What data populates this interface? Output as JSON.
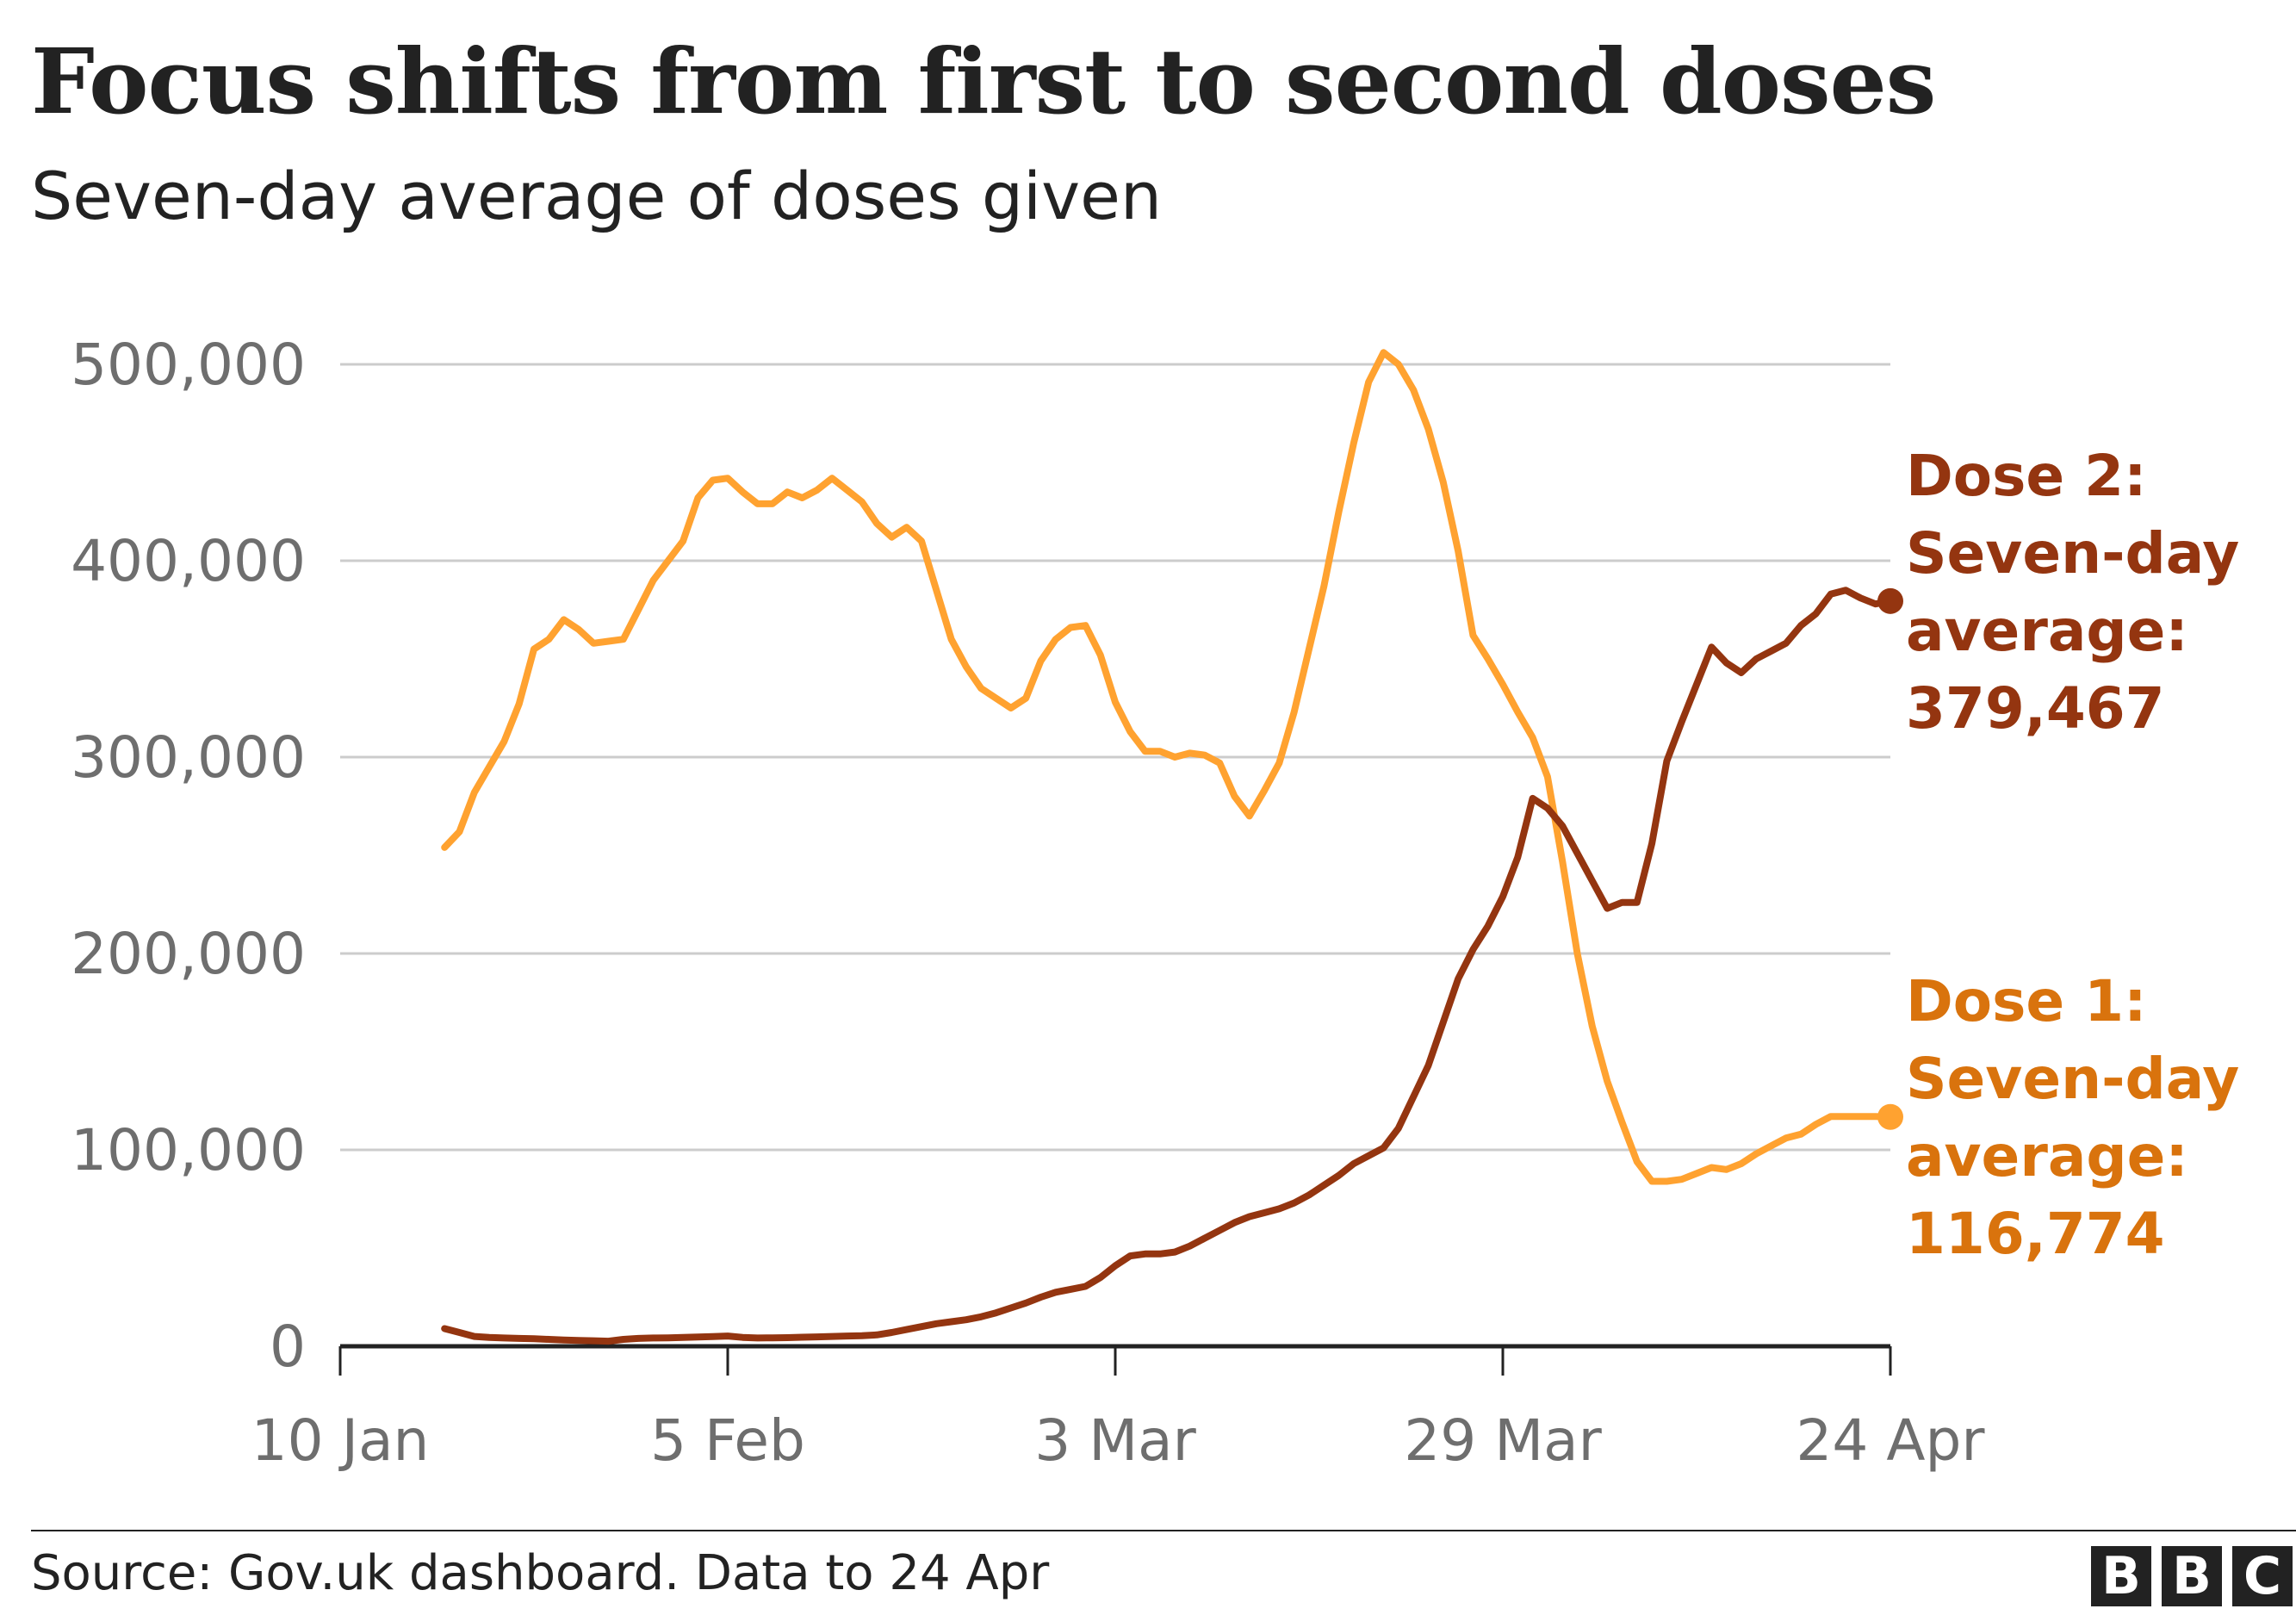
{
  "title": "Focus shifts from first to second doses",
  "subtitle": "Seven-day average of doses given",
  "source": "Source: Gov.uk dashboard. Data to 24 Apr",
  "logo": [
    "B",
    "B",
    "C"
  ],
  "colors": {
    "dose1_line": "#ffa230",
    "dose1_label": "#d9730d",
    "dose2_line": "#943510",
    "dose2_label": "#943510",
    "grid": "#cccccc",
    "axis": "#222222",
    "tick_text": "#6e6e6e",
    "text": "#222222"
  },
  "chart_data": {
    "type": "line",
    "ylim": [
      0,
      500000
    ],
    "y_ticks": [
      0,
      100000,
      200000,
      300000,
      400000,
      500000
    ],
    "y_tick_labels": [
      "0",
      "100,000",
      "200,000",
      "300,000",
      "400,000",
      "500,000"
    ],
    "xlim": [
      "2021-01-10",
      "2021-04-24"
    ],
    "x_ticks": [
      "2021-01-10",
      "2021-02-05",
      "2021-03-03",
      "2021-03-29",
      "2021-04-24"
    ],
    "x_tick_labels": [
      "10 Jan",
      "5 Feb",
      "3 Mar",
      "29 Mar",
      "24 Apr"
    ],
    "grid": "horizontal",
    "x": [
      "2021-01-17",
      "2021-01-18",
      "2021-01-19",
      "2021-01-20",
      "2021-01-21",
      "2021-01-22",
      "2021-01-23",
      "2021-01-24",
      "2021-01-25",
      "2021-01-26",
      "2021-01-27",
      "2021-01-28",
      "2021-01-29",
      "2021-01-30",
      "2021-01-31",
      "2021-02-01",
      "2021-02-02",
      "2021-02-03",
      "2021-02-04",
      "2021-02-05",
      "2021-02-06",
      "2021-02-07",
      "2021-02-08",
      "2021-02-09",
      "2021-02-10",
      "2021-02-11",
      "2021-02-12",
      "2021-02-13",
      "2021-02-14",
      "2021-02-15",
      "2021-02-16",
      "2021-02-17",
      "2021-02-18",
      "2021-02-19",
      "2021-02-20",
      "2021-02-21",
      "2021-02-22",
      "2021-02-23",
      "2021-02-24",
      "2021-02-25",
      "2021-02-26",
      "2021-02-27",
      "2021-02-28",
      "2021-03-01",
      "2021-03-02",
      "2021-03-03",
      "2021-03-04",
      "2021-03-05",
      "2021-03-06",
      "2021-03-07",
      "2021-03-08",
      "2021-03-09",
      "2021-03-10",
      "2021-03-11",
      "2021-03-12",
      "2021-03-13",
      "2021-03-14",
      "2021-03-15",
      "2021-03-16",
      "2021-03-17",
      "2021-03-18",
      "2021-03-19",
      "2021-03-20",
      "2021-03-21",
      "2021-03-22",
      "2021-03-23",
      "2021-03-24",
      "2021-03-25",
      "2021-03-26",
      "2021-03-27",
      "2021-03-28",
      "2021-03-29",
      "2021-03-30",
      "2021-03-31",
      "2021-04-01",
      "2021-04-02",
      "2021-04-03",
      "2021-04-04",
      "2021-04-05",
      "2021-04-06",
      "2021-04-07",
      "2021-04-08",
      "2021-04-09",
      "2021-04-10",
      "2021-04-11",
      "2021-04-12",
      "2021-04-13",
      "2021-04-14",
      "2021-04-15",
      "2021-04-16",
      "2021-04-17",
      "2021-04-18",
      "2021-04-19",
      "2021-04-20",
      "2021-04-21",
      "2021-04-22",
      "2021-04-23",
      "2021-04-24"
    ],
    "series": [
      {
        "name": "Dose 1",
        "end_label": [
          "Dose 1:",
          "Seven-day",
          "average:",
          "116,774"
        ],
        "values": [
          254000,
          262000,
          282000,
          295000,
          308000,
          327000,
          355000,
          360000,
          370000,
          365000,
          358000,
          359000,
          360000,
          375000,
          390000,
          400000,
          410000,
          432000,
          441000,
          442000,
          435000,
          429000,
          429000,
          435000,
          432000,
          436000,
          442000,
          436000,
          430000,
          419000,
          412000,
          417000,
          410000,
          385000,
          360000,
          346000,
          335000,
          330000,
          325000,
          330000,
          349000,
          360000,
          366000,
          367000,
          352000,
          328000,
          313000,
          303000,
          303000,
          300000,
          302000,
          301000,
          297000,
          280000,
          270000,
          283000,
          297000,
          323000,
          355000,
          387000,
          425000,
          460000,
          491000,
          506000,
          500000,
          487000,
          467000,
          440000,
          405000,
          362000,
          350000,
          337000,
          323000,
          310000,
          290000,
          247000,
          200000,
          163000,
          135000,
          114000,
          94000,
          84000,
          84000,
          85000,
          88000,
          91000,
          90000,
          93000,
          98000,
          102000,
          106000,
          108000,
          113000,
          117000,
          117000,
          117000,
          117000,
          116774
        ]
      },
      {
        "name": "Dose 2",
        "end_label": [
          "Dose 2:",
          "Seven-day",
          "average:",
          "379,467"
        ],
        "values": [
          9000,
          7000,
          5000,
          4500,
          4200,
          4000,
          3800,
          3500,
          3200,
          3000,
          2800,
          2600,
          3500,
          4000,
          4200,
          4300,
          4500,
          4700,
          4900,
          5200,
          4500,
          4200,
          4300,
          4400,
          4600,
          4800,
          5000,
          5200,
          5400,
          5800,
          7000,
          8500,
          10000,
          11500,
          12500,
          13500,
          15000,
          17000,
          19500,
          22000,
          25000,
          27500,
          29000,
          30500,
          35000,
          41000,
          46000,
          47000,
          47000,
          48000,
          51000,
          55000,
          59000,
          63000,
          66000,
          68000,
          70000,
          73000,
          77000,
          82000,
          87000,
          93000,
          97000,
          101000,
          111000,
          127000,
          143000,
          165000,
          187000,
          202000,
          214000,
          229000,
          249000,
          279000,
          274000,
          265000,
          251000,
          237000,
          223000,
          226000,
          226000,
          256000,
          298000,
          318000,
          337000,
          356000,
          348000,
          343000,
          350000,
          354000,
          358000,
          367000,
          373000,
          383000,
          385000,
          381000,
          378000,
          379467
        ]
      }
    ]
  }
}
